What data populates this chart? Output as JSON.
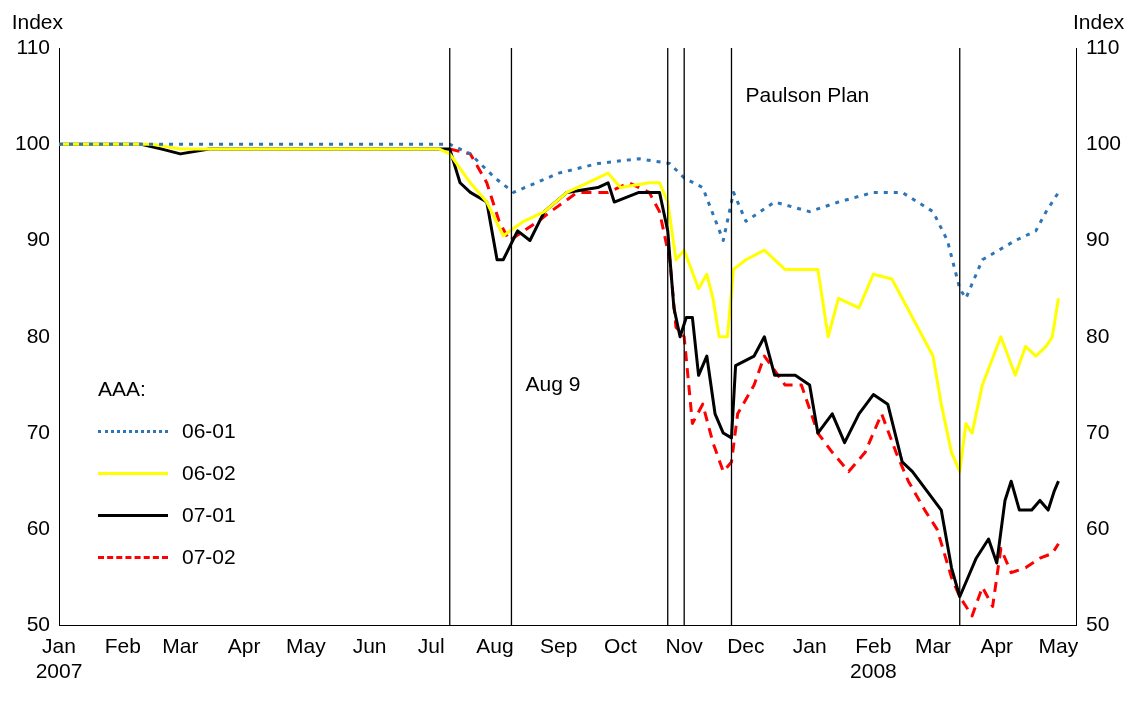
{
  "chart_data": {
    "type": "line",
    "ylabel": "Index",
    "y2label": "Index",
    "legend_title": "AAA:",
    "legend": "left",
    "grid": false,
    "marker": "none",
    "xlim": [
      "2007-01-01",
      "2008-05-10"
    ],
    "xticks": [
      {
        "value": "2007-01-01",
        "label": "Jan\n2007"
      },
      {
        "value": "2007-02-01",
        "label": "Feb"
      },
      {
        "value": "2007-03-01",
        "label": "Mar"
      },
      {
        "value": "2007-04-01",
        "label": "Apr"
      },
      {
        "value": "2007-05-01",
        "label": "May"
      },
      {
        "value": "2007-06-01",
        "label": "Jun"
      },
      {
        "value": "2007-07-01",
        "label": "Jul"
      },
      {
        "value": "2007-08-01",
        "label": "Aug"
      },
      {
        "value": "2007-09-01",
        "label": "Sep"
      },
      {
        "value": "2007-10-01",
        "label": "Oct"
      },
      {
        "value": "2007-11-01",
        "label": "Nov"
      },
      {
        "value": "2007-12-01",
        "label": "Dec"
      },
      {
        "value": "2008-01-01",
        "label": "Jan"
      },
      {
        "value": "2008-02-01",
        "label": "Feb\n2008"
      },
      {
        "value": "2008-03-01",
        "label": "Mar"
      },
      {
        "value": "2008-04-01",
        "label": "Apr"
      },
      {
        "value": "2008-05-01",
        "label": "May"
      }
    ],
    "ylim": [
      50,
      110
    ],
    "yticks": [
      50,
      60,
      70,
      80,
      90,
      100,
      110
    ],
    "y2lim": [
      50,
      110
    ],
    "y2ticks": [
      50,
      60,
      70,
      80,
      90,
      100,
      110
    ],
    "ref_lines": [
      {
        "axis": "x",
        "value": "2007-07-10",
        "color": "#000000"
      },
      {
        "axis": "x",
        "value": "2007-08-09",
        "color": "#000000"
      },
      {
        "axis": "x",
        "value": "2007-10-24",
        "color": "#000000"
      },
      {
        "axis": "x",
        "value": "2007-11-01",
        "color": "#000000"
      },
      {
        "axis": "x",
        "value": "2007-11-24",
        "color": "#000000"
      },
      {
        "axis": "x",
        "value": "2008-03-14",
        "color": "#000000"
      }
    ],
    "annotations": [
      {
        "text": "Aug 9",
        "x": "2007-08-09",
        "y": 75
      },
      {
        "text": "Paulson Plan",
        "x": "2007-11-24",
        "y": 105
      }
    ],
    "series": [
      {
        "name": "06-01",
        "color": "#2e75b6",
        "line_style": "dotted",
        "x": [
          "2007-01-01",
          "2007-07-10",
          "2007-07-20",
          "2007-08-01",
          "2007-08-10",
          "2007-09-01",
          "2007-09-20",
          "2007-10-10",
          "2007-10-25",
          "2007-11-01",
          "2007-11-10",
          "2007-11-20",
          "2007-11-25",
          "2007-12-01",
          "2007-12-15",
          "2008-01-01",
          "2008-01-15",
          "2008-02-01",
          "2008-02-15",
          "2008-03-01",
          "2008-03-08",
          "2008-03-14",
          "2008-03-17",
          "2008-03-25",
          "2008-04-10",
          "2008-04-20",
          "2008-04-25",
          "2008-05-01"
        ],
        "values": [
          100,
          100,
          99,
          96.5,
          95,
          97,
          98,
          98.5,
          98,
          96.5,
          95.5,
          90,
          95,
          92,
          94,
          93,
          94,
          95,
          95,
          93,
          90,
          85,
          84,
          88,
          90,
          91,
          93,
          95
        ]
      },
      {
        "name": "06-02",
        "color": "#ffff00",
        "line_style": "solid",
        "x": [
          "2007-01-01",
          "2007-02-15",
          "2007-03-01",
          "2007-07-05",
          "2007-07-10",
          "2007-07-20",
          "2007-07-28",
          "2007-08-05",
          "2007-08-15",
          "2007-08-25",
          "2007-09-05",
          "2007-09-15",
          "2007-09-25",
          "2007-10-01",
          "2007-10-15",
          "2007-10-20",
          "2007-10-24",
          "2007-10-28",
          "2007-11-01",
          "2007-11-08",
          "2007-11-12",
          "2007-11-15",
          "2007-11-18",
          "2007-11-22",
          "2007-11-25",
          "2007-12-01",
          "2007-12-10",
          "2007-12-20",
          "2008-01-05",
          "2008-01-10",
          "2008-01-15",
          "2008-01-25",
          "2008-02-01",
          "2008-02-10",
          "2008-02-20",
          "2008-02-25",
          "2008-03-01",
          "2008-03-05",
          "2008-03-10",
          "2008-03-14",
          "2008-03-17",
          "2008-03-20",
          "2008-03-25",
          "2008-04-03",
          "2008-04-10",
          "2008-04-15",
          "2008-04-20",
          "2008-04-25",
          "2008-04-28",
          "2008-05-01"
        ],
        "values": [
          100,
          100,
          99.5,
          99.5,
          99,
          96,
          94,
          90.5,
          92,
          93,
          95,
          96,
          97,
          95.5,
          96,
          96,
          94,
          88,
          89,
          85,
          86.5,
          84,
          80,
          80,
          87,
          88,
          89,
          87,
          87,
          80,
          84,
          83,
          86.5,
          86,
          82,
          80,
          78,
          73,
          68,
          66,
          71,
          70,
          75,
          80,
          76,
          79,
          78,
          79,
          80,
          84
        ]
      },
      {
        "name": "07-01",
        "color": "#000000",
        "line_style": "solid",
        "x": [
          "2007-01-01",
          "2007-02-10",
          "2007-02-20",
          "2007-03-01",
          "2007-03-15",
          "2007-07-10",
          "2007-07-15",
          "2007-07-20",
          "2007-07-28",
          "2007-08-02",
          "2007-08-05",
          "2007-08-12",
          "2007-08-18",
          "2007-08-25",
          "2007-09-05",
          "2007-09-20",
          "2007-09-25",
          "2007-09-28",
          "2007-10-10",
          "2007-10-20",
          "2007-10-24",
          "2007-10-27",
          "2007-10-30",
          "2007-11-02",
          "2007-11-05",
          "2007-11-08",
          "2007-11-12",
          "2007-11-16",
          "2007-11-20",
          "2007-11-24",
          "2007-11-26",
          "2007-12-05",
          "2007-12-10",
          "2007-12-15",
          "2007-12-25",
          "2008-01-01",
          "2008-01-05",
          "2008-01-12",
          "2008-01-18",
          "2008-01-25",
          "2008-02-01",
          "2008-02-08",
          "2008-02-15",
          "2008-02-20",
          "2008-02-27",
          "2008-03-05",
          "2008-03-10",
          "2008-03-14",
          "2008-03-18",
          "2008-03-22",
          "2008-03-28",
          "2008-04-01",
          "2008-04-05",
          "2008-04-08",
          "2008-04-12",
          "2008-04-18",
          "2008-04-22",
          "2008-04-26",
          "2008-04-29",
          "2008-05-01"
        ],
        "values": [
          100,
          100,
          99.5,
          99,
          99.5,
          99.5,
          96,
          95,
          94,
          88,
          88,
          91,
          90,
          93,
          95,
          95.5,
          96,
          94,
          95,
          95,
          91,
          83,
          80,
          82,
          82,
          76,
          78,
          72,
          70,
          69.5,
          77,
          78,
          80,
          76,
          76,
          75,
          70,
          72,
          69,
          72,
          74,
          73,
          67,
          66,
          64,
          62,
          56,
          53,
          55,
          57,
          59,
          56.5,
          63,
          65,
          62,
          62,
          63,
          62,
          64,
          65
        ]
      },
      {
        "name": "07-02",
        "color": "#ff0000",
        "line_style": "dashed",
        "x": [
          "2007-07-10",
          "2007-07-20",
          "2007-07-28",
          "2007-08-03",
          "2007-08-08",
          "2007-08-15",
          "2007-08-22",
          "2007-08-28",
          "2007-09-10",
          "2007-09-25",
          "2007-10-05",
          "2007-10-15",
          "2007-10-20",
          "2007-10-25",
          "2007-10-28",
          "2007-11-01",
          "2007-11-05",
          "2007-11-10",
          "2007-11-15",
          "2007-11-20",
          "2007-11-24",
          "2007-11-27",
          "2007-12-05",
          "2007-12-10",
          "2007-12-20",
          "2007-12-28",
          "2008-01-05",
          "2008-01-12",
          "2008-01-20",
          "2008-01-28",
          "2008-02-05",
          "2008-02-12",
          "2008-02-18",
          "2008-02-26",
          "2008-03-03",
          "2008-03-10",
          "2008-03-14",
          "2008-03-20",
          "2008-03-25",
          "2008-03-30",
          "2008-04-03",
          "2008-04-08",
          "2008-04-15",
          "2008-04-22",
          "2008-04-28",
          "2008-05-01"
        ],
        "values": [
          99.5,
          99,
          96,
          92,
          90,
          91,
          92,
          93,
          95,
          95,
          96,
          95,
          93,
          88,
          81,
          80,
          71,
          73,
          69,
          66,
          67,
          72,
          75,
          78,
          75,
          75,
          70,
          68,
          66,
          68,
          72,
          68,
          65,
          62,
          60,
          55,
          53,
          51,
          54,
          52,
          58,
          55.5,
          56,
          57,
          57.5,
          58.5
        ]
      }
    ]
  }
}
